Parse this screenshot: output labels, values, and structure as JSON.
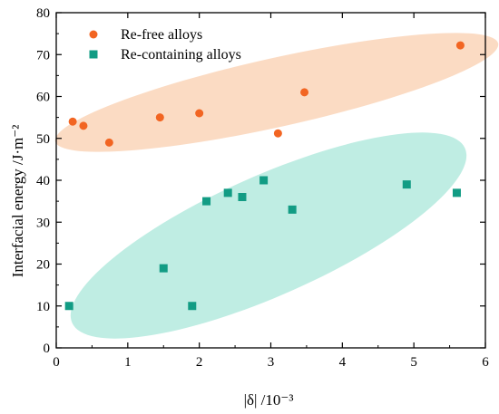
{
  "chart_data": {
    "type": "scatter",
    "title": "",
    "xlabel": "|δ| /10⁻³",
    "ylabel": "Interfacial energy /J·m⁻²",
    "xlim": [
      0,
      6
    ],
    "ylim": [
      0,
      80
    ],
    "x_ticks": [
      "0",
      "1",
      "2",
      "3",
      "4",
      "5",
      "6"
    ],
    "y_ticks": [
      "0",
      "10",
      "20",
      "30",
      "40",
      "50",
      "60",
      "70",
      "80"
    ],
    "grid": false,
    "legend_position": "top-left",
    "series": [
      {
        "name": "Re-free alloys",
        "marker": "circle",
        "color": "#f26522",
        "ellipse_color": "#fbd7bd",
        "points": [
          {
            "x": 0.23,
            "y": 54
          },
          {
            "x": 0.38,
            "y": 53
          },
          {
            "x": 0.74,
            "y": 49
          },
          {
            "x": 1.45,
            "y": 55
          },
          {
            "x": 2.0,
            "y": 56
          },
          {
            "x": 3.1,
            "y": 51.2
          },
          {
            "x": 3.47,
            "y": 61
          },
          {
            "x": 5.65,
            "y": 72.2
          }
        ]
      },
      {
        "name": "Re-containing alloys",
        "marker": "square",
        "color": "#129c84",
        "ellipse_color": "#b8ebe0",
        "points": [
          {
            "x": 0.18,
            "y": 10
          },
          {
            "x": 1.5,
            "y": 19
          },
          {
            "x": 1.9,
            "y": 10
          },
          {
            "x": 2.1,
            "y": 35
          },
          {
            "x": 2.4,
            "y": 37
          },
          {
            "x": 2.6,
            "y": 36
          },
          {
            "x": 2.9,
            "y": 40
          },
          {
            "x": 3.3,
            "y": 33
          },
          {
            "x": 4.9,
            "y": 39
          },
          {
            "x": 5.6,
            "y": 37
          }
        ]
      }
    ]
  }
}
